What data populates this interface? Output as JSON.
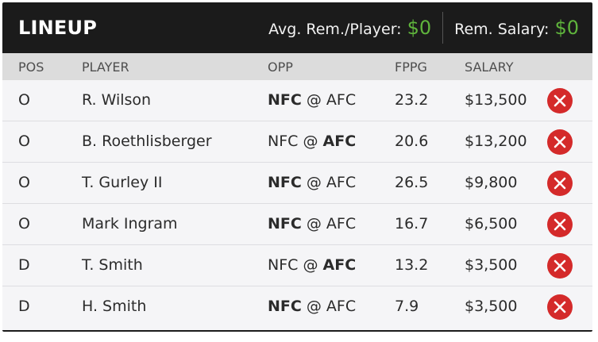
{
  "header": {
    "title": "LINEUP",
    "avg_label": "Avg. Rem./Player:",
    "avg_value": "$0",
    "rem_label": "Rem. Salary:",
    "rem_value": "$0"
  },
  "columns": {
    "pos": "POS",
    "player": "PLAYER",
    "opp": "OPP",
    "fppg": "FPPG",
    "salary": "SALARY"
  },
  "rows": [
    {
      "pos": "O",
      "player": "R. Wilson",
      "opp_home": "NFC",
      "opp_sep": " @ ",
      "opp_away": "AFC",
      "bold": "home",
      "fppg": "23.2",
      "salary": "$13,500"
    },
    {
      "pos": "O",
      "player": "B. Roethlisberger",
      "opp_home": "NFC",
      "opp_sep": " @ ",
      "opp_away": "AFC",
      "bold": "away",
      "fppg": "20.6",
      "salary": "$13,200"
    },
    {
      "pos": "O",
      "player": "T. Gurley II",
      "opp_home": "NFC",
      "opp_sep": " @ ",
      "opp_away": "AFC",
      "bold": "home",
      "fppg": "26.5",
      "salary": "$9,800"
    },
    {
      "pos": "O",
      "player": "Mark Ingram",
      "opp_home": "NFC",
      "opp_sep": " @ ",
      "opp_away": "AFC",
      "bold": "home",
      "fppg": "16.7",
      "salary": "$6,500"
    },
    {
      "pos": "D",
      "player": "T. Smith",
      "opp_home": "NFC",
      "opp_sep": " @ ",
      "opp_away": "AFC",
      "bold": "away",
      "fppg": "13.2",
      "salary": "$3,500"
    },
    {
      "pos": "D",
      "player": "H. Smith",
      "opp_home": "NFC",
      "opp_sep": " @ ",
      "opp_away": "AFC",
      "bold": "home",
      "fppg": "7.9",
      "salary": "$3,500"
    }
  ],
  "remove_icon": "close-icon",
  "colors": {
    "accent_green": "#5fb43c",
    "remove_red": "#d42a2a",
    "header_bg": "#1b1b1b"
  }
}
